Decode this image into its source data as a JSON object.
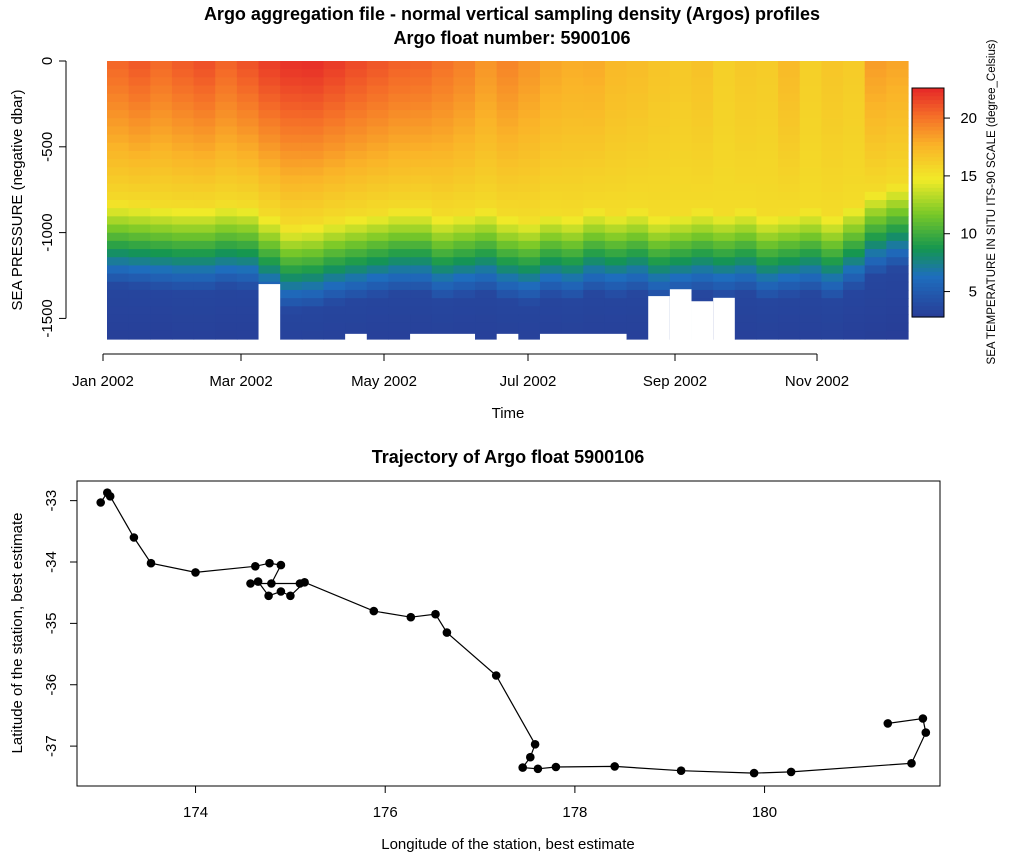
{
  "chart_data": [
    {
      "type": "heatmap",
      "title": "Argo aggregation file - normal vertical sampling density (Argos) profiles",
      "subtitle": "Argo float number: 5900106",
      "xlabel": "Time",
      "ylabel": "SEA PRESSURE (negative dbar)",
      "colorbar_label": "SEA TEMPERATURE IN SITU ITS-90 SCALE (degree_Celsius)",
      "x_ticks": [
        "Jan 2002",
        "Mar 2002",
        "May 2002",
        "Jul 2002",
        "Sep 2002",
        "Nov 2002"
      ],
      "y_ticks": [
        "0",
        "-500",
        "-1000",
        "-1500"
      ],
      "y_tick_values": [
        0,
        -500,
        -1000,
        -1500
      ],
      "ylim": [
        -1620,
        0
      ],
      "colorbar_ticks": [
        "5",
        "10",
        "15",
        "20"
      ],
      "colorbar_tick_values": [
        5,
        10,
        15,
        20
      ],
      "color_range": [
        2.8,
        22.6
      ],
      "profiles": {
        "surface_temp": [
          20.5,
          21.0,
          20.4,
          20.9,
          21.3,
          20.6,
          21.2,
          21.9,
          22.3,
          22.4,
          22.0,
          21.5,
          21.1,
          20.7,
          20.6,
          20.1,
          19.6,
          18.8,
          19.4,
          18.8,
          18.2,
          17.9,
          18.0,
          17.4,
          17.2,
          16.8,
          16.6,
          16.9,
          16.2,
          16.6,
          16.4,
          17.3,
          16.2,
          16.7,
          16.4,
          18.5,
          18.2
        ],
        "thermocline_depth": [
          820,
          830,
          840,
          850,
          850,
          830,
          840,
          900,
          960,
          950,
          920,
          900,
          880,
          860,
          860,
          900,
          880,
          860,
          900,
          920,
          880,
          900,
          860,
          880,
          860,
          900,
          880,
          860,
          880,
          860,
          900,
          880,
          860,
          900,
          840,
          760,
          720
        ],
        "gaps": [
          {
            "from_profile": 7,
            "to_profile": 7,
            "below_dbar": -1300
          },
          {
            "from_profile": 11,
            "to_profile": 11,
            "below_dbar": -1590
          },
          {
            "from_profile": 14,
            "to_profile": 16,
            "below_dbar": -1590
          },
          {
            "from_profile": 18,
            "to_profile": 18,
            "below_dbar": -1590
          },
          {
            "from_profile": 20,
            "to_profile": 23,
            "below_dbar": -1590
          },
          {
            "from_profile": 25,
            "to_profile": 25,
            "below_dbar": -1370
          },
          {
            "from_profile": 26,
            "to_profile": 26,
            "below_dbar": -1330
          },
          {
            "from_profile": 27,
            "to_profile": 27,
            "below_dbar": -1400
          },
          {
            "from_profile": 28,
            "to_profile": 28,
            "below_dbar": -1380
          }
        ]
      }
    },
    {
      "type": "line",
      "title": "Trajectory of Argo float 5900106",
      "xlabel": "Longitude of the station, best estimate",
      "ylabel": "Latitude of the station, best estimate",
      "x_ticks": [
        "174",
        "176",
        "178",
        "180"
      ],
      "x_tick_values": [
        174,
        176,
        178,
        180
      ],
      "y_ticks": [
        "-33",
        "-34",
        "-35",
        "-36",
        "-37"
      ],
      "y_tick_values": [
        -33,
        -34,
        -35,
        -36,
        -37
      ],
      "xlim": [
        172.75,
        181.85
      ],
      "ylim": [
        -37.65,
        -32.68
      ],
      "points": [
        [
          173.0,
          -33.03
        ],
        [
          173.07,
          -32.87
        ],
        [
          173.1,
          -32.93
        ],
        [
          173.35,
          -33.6
        ],
        [
          173.53,
          -34.02
        ],
        [
          174.0,
          -34.17
        ],
        [
          174.63,
          -34.07
        ],
        [
          174.78,
          -34.02
        ],
        [
          174.9,
          -34.05
        ],
        [
          174.8,
          -34.35
        ],
        [
          175.1,
          -34.35
        ],
        [
          174.58,
          -34.35
        ],
        [
          174.66,
          -34.32
        ],
        [
          174.77,
          -34.55
        ],
        [
          174.9,
          -34.48
        ],
        [
          175.0,
          -34.55
        ],
        [
          175.15,
          -34.33
        ],
        [
          175.88,
          -34.8
        ],
        [
          176.27,
          -34.9
        ],
        [
          176.53,
          -34.85
        ],
        [
          176.65,
          -35.15
        ],
        [
          177.17,
          -35.85
        ],
        [
          177.58,
          -36.97
        ],
        [
          177.53,
          -37.18
        ],
        [
          177.45,
          -37.35
        ],
        [
          177.61,
          -37.37
        ],
        [
          177.8,
          -37.34
        ],
        [
          178.42,
          -37.33
        ],
        [
          179.12,
          -37.4
        ],
        [
          179.89,
          -37.44
        ],
        [
          180.28,
          -37.42
        ],
        [
          181.55,
          -37.28
        ],
        [
          181.7,
          -36.78
        ],
        [
          181.67,
          -36.55
        ],
        [
          181.3,
          -36.63
        ]
      ]
    }
  ]
}
